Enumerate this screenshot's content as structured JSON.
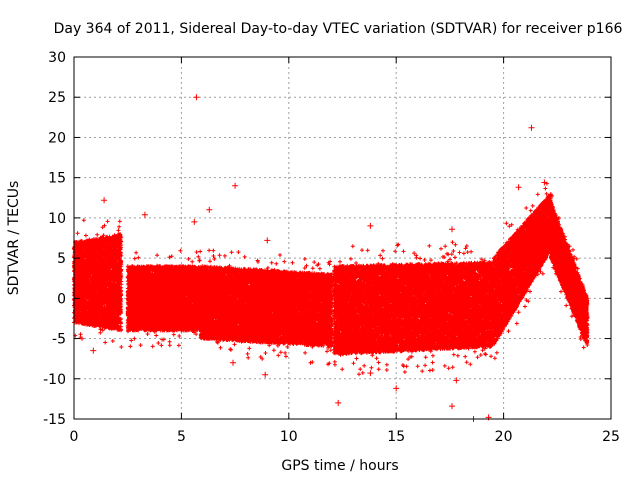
{
  "chart_data": {
    "type": "scatter",
    "title": "Day 364 of 2011, Sidereal Day-to-day VTEC variation (SDTVAR) for receiver p166",
    "xlabel": "GPS time / hours",
    "ylabel": "SDTVAR / TECUs",
    "xlim": [
      0,
      25
    ],
    "ylim": [
      -15,
      30
    ],
    "xticks": [
      0,
      5,
      10,
      15,
      20,
      25
    ],
    "yticks": [
      -15,
      -10,
      -5,
      0,
      5,
      10,
      15,
      20,
      25,
      30
    ],
    "grid": true,
    "marker": "+",
    "color": "#ff0000",
    "segments": [
      {
        "x": [
          0.0,
          2.2
        ],
        "lower": [
          -3,
          -4
        ],
        "upper": [
          7,
          8
        ]
      },
      {
        "x": [
          2.5,
          5.9
        ],
        "lower": [
          -4,
          -4
        ],
        "upper": [
          4,
          4
        ]
      },
      {
        "x": [
          5.9,
          12.0
        ],
        "lower": [
          -5,
          -6
        ],
        "upper": [
          4,
          3
        ]
      },
      {
        "x": [
          12.1,
          19.5
        ],
        "lower": [
          -7,
          -6
        ],
        "upper": [
          4,
          4.5
        ]
      },
      {
        "x": [
          19.5,
          22.2
        ],
        "lower": [
          -6,
          6
        ],
        "upper": [
          5,
          13
        ]
      },
      {
        "x": [
          22.2,
          23.9
        ],
        "lower": [
          5,
          -6
        ],
        "upper": [
          12,
          0
        ]
      }
    ],
    "outliers": [
      {
        "x": 5.7,
        "y": 25
      },
      {
        "x": 21.3,
        "y": 21.2
      },
      {
        "x": 7.5,
        "y": 14
      },
      {
        "x": 21.9,
        "y": 14.4
      },
      {
        "x": 20.7,
        "y": 13.8
      },
      {
        "x": 1.4,
        "y": 12.2
      },
      {
        "x": 6.3,
        "y": 11
      },
      {
        "x": 3.3,
        "y": 10.4
      },
      {
        "x": 9.0,
        "y": 7.2
      },
      {
        "x": 13.8,
        "y": 9
      },
      {
        "x": 17.6,
        "y": 8.6
      },
      {
        "x": 5.6,
        "y": 9.5
      },
      {
        "x": 7.4,
        "y": -8
      },
      {
        "x": 13.8,
        "y": -9.3
      },
      {
        "x": 15.0,
        "y": -11.2
      },
      {
        "x": 17.6,
        "y": -13.4
      },
      {
        "x": 17.8,
        "y": -10.2
      },
      {
        "x": 18.6,
        "y": -15
      },
      {
        "x": 19.3,
        "y": -14.8
      },
      {
        "x": 12.3,
        "y": -13
      },
      {
        "x": 8.9,
        "y": -9.5
      },
      {
        "x": 0.9,
        "y": -6.5
      }
    ]
  }
}
